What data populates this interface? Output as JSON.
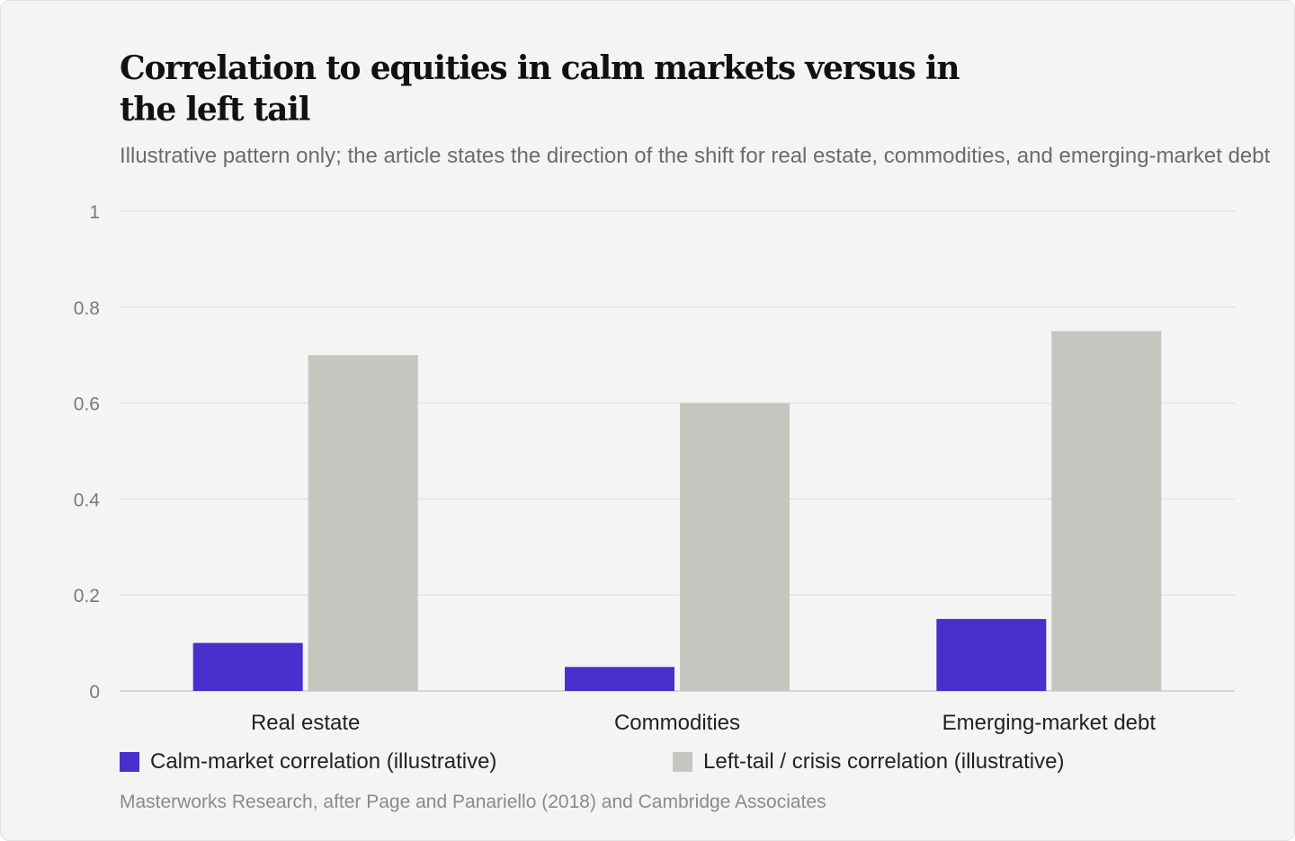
{
  "title": "Correlation to equities in calm markets versus in the left tail",
  "subtitle": "Illustrative pattern only; the article states the direction of the shift for real estate, commodities, and emerging-market debt",
  "source": "Masterworks Research, after Page and Panariello (2018) and Cambridge Associates",
  "colors": {
    "background": "#f4f4f4",
    "calm": "#4b2fcc",
    "crisis": "#c6c5c0",
    "grid": "#e4e4e4",
    "axis_line": "#cccccc",
    "tick_text": "#7a7a7a",
    "category_text": "#222222"
  },
  "chart_data": {
    "type": "bar",
    "categories": [
      "Real estate",
      "Commodities",
      "Emerging-market debt"
    ],
    "series": [
      {
        "name": "Calm-market correlation (illustrative)",
        "values": [
          0.1,
          0.05,
          0.15
        ],
        "color": "#4b2fcc"
      },
      {
        "name": "Left-tail / crisis correlation (illustrative)",
        "values": [
          0.7,
          0.6,
          0.75
        ],
        "color": "#c6c5c0"
      }
    ],
    "y_ticks": [
      "0",
      "0.2",
      "0.4",
      "0.6",
      "0.8",
      "1"
    ],
    "ylim": [
      0,
      1
    ],
    "grid": true,
    "legend_position": "bottom"
  }
}
